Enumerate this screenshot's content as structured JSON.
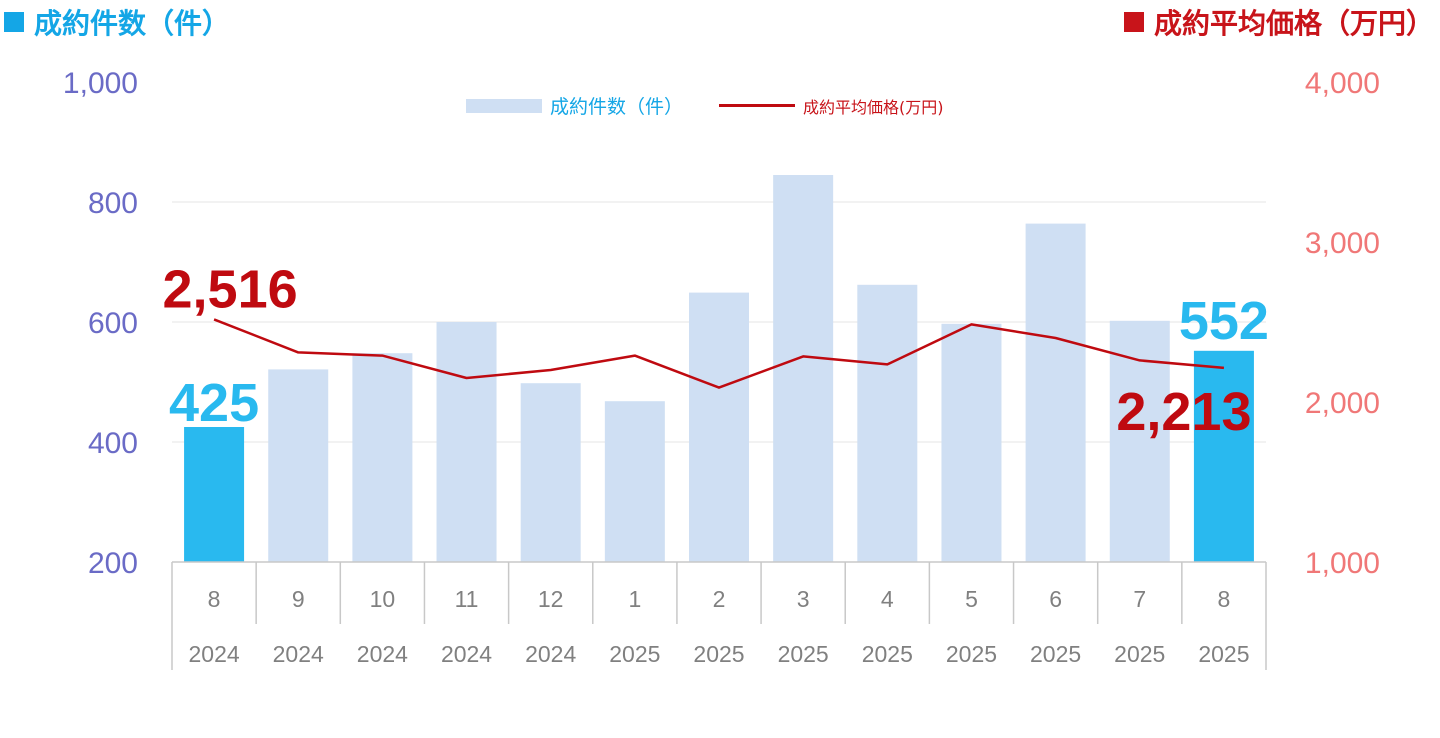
{
  "header": {
    "left_title": "成約件数（件）",
    "right_title": "成約平均価格（万円）"
  },
  "legend": {
    "bar_label": "成約件数（件）",
    "line_label": "成約平均価格(万円)"
  },
  "colors": {
    "bar_default": "#cfdff3",
    "bar_highlight": "#29b9ef",
    "line": "#bf0a10",
    "left_axis_text": "#6a6bc6",
    "right_axis_text": "#f07777",
    "left_title": "#14a6e6",
    "right_title": "#c8141a",
    "category_text": "#808080",
    "grid": "#e4e4e4"
  },
  "chart_data": {
    "type": "bar",
    "categories": [
      "8",
      "9",
      "10",
      "11",
      "12",
      "1",
      "2",
      "3",
      "4",
      "5",
      "6",
      "7",
      "8"
    ],
    "years": [
      "2024",
      "2024",
      "2024",
      "2024",
      "2024",
      "2025",
      "2025",
      "2025",
      "2025",
      "2025",
      "2025",
      "2025",
      "2025"
    ],
    "series": [
      {
        "name": "成約件数（件）",
        "type": "bar",
        "axis": "left",
        "values": [
          425,
          521,
          548,
          600,
          498,
          468,
          649,
          845,
          662,
          597,
          764,
          602,
          552
        ],
        "highlight": [
          true,
          false,
          false,
          false,
          false,
          false,
          false,
          false,
          false,
          false,
          false,
          false,
          true
        ]
      },
      {
        "name": "成約平均価格(万円)",
        "type": "line",
        "axis": "right",
        "values": [
          2516,
          2310,
          2290,
          2150,
          2200,
          2290,
          2090,
          2285,
          2235,
          2485,
          2400,
          2260,
          2213
        ]
      }
    ],
    "left_axis": {
      "min": 200,
      "max": 1000,
      "ticks": [
        "200",
        "400",
        "600",
        "800",
        "1,000"
      ]
    },
    "right_axis": {
      "min": 1000,
      "max": 4000,
      "ticks": [
        "1,000",
        "2,000",
        "3,000",
        "4,000"
      ]
    },
    "annotations": {
      "first_count": "425",
      "last_count": "552",
      "first_price": "2,516",
      "last_price": "2,213"
    },
    "grid": true,
    "legend_position": "top-center"
  }
}
